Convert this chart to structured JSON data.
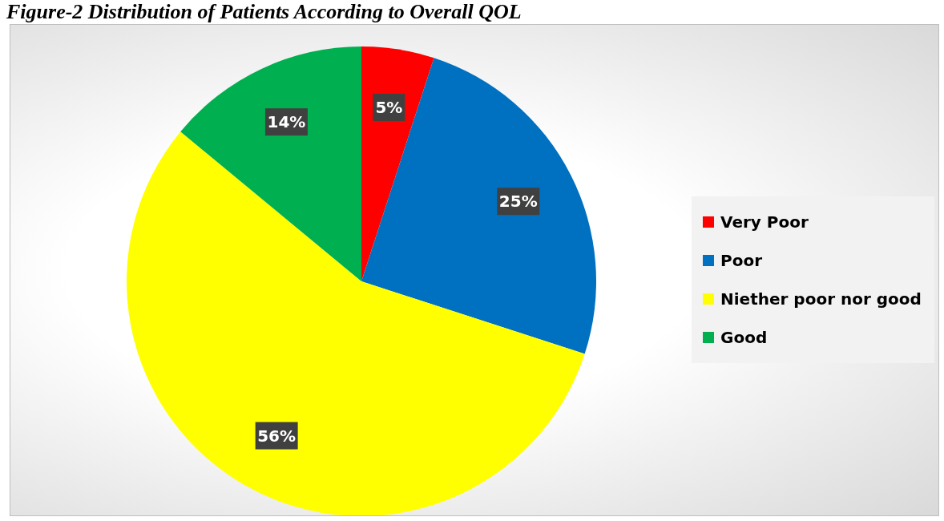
{
  "chart_data": {
    "type": "pie",
    "title": "Figure-2 Distribution of Patients According to Overall QOL",
    "categories": [
      "Very Poor",
      "Poor",
      "Niether poor nor good",
      "Good"
    ],
    "values": [
      5,
      25,
      56,
      14
    ],
    "colors": [
      "#ff0000",
      "#0070c0",
      "#ffff00",
      "#00b050"
    ],
    "value_labels": [
      "5%",
      "25%",
      "56%",
      "14%"
    ],
    "legend": "right"
  }
}
